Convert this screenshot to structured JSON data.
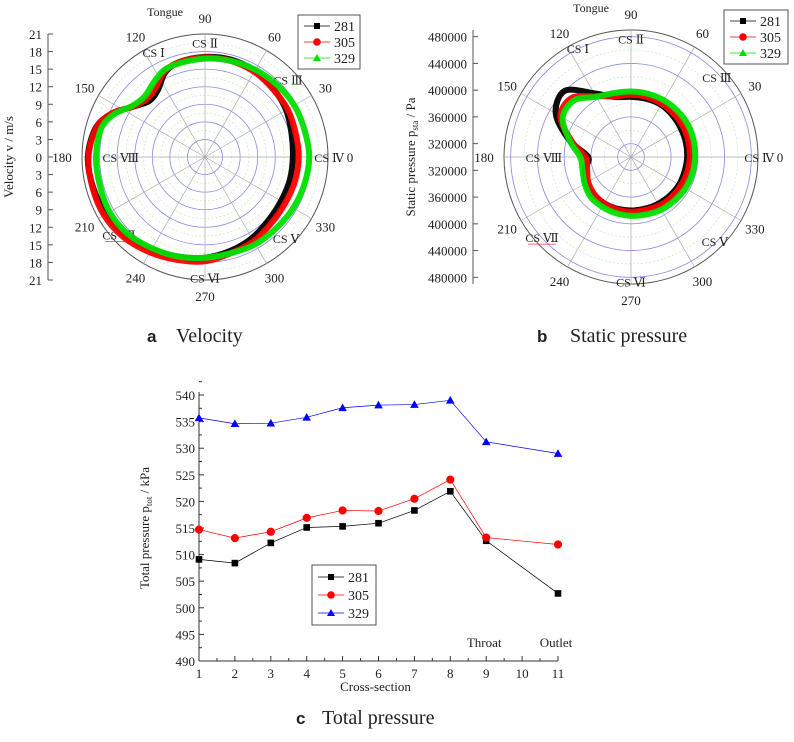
{
  "captions": [
    {
      "letter": "a",
      "text": "Velocity"
    },
    {
      "letter": "b",
      "text": "Static pressure"
    },
    {
      "letter": "c",
      "text": "Total pressure"
    }
  ],
  "chart_data": [
    {
      "type": "polar-line",
      "ylabel": "Velocity v / m/s",
      "rlim": [
        0,
        21
      ],
      "rticks": [
        0,
        3,
        6,
        9,
        12,
        15,
        18,
        21
      ],
      "angle_ticks": [
        0,
        30,
        60,
        90,
        120,
        150,
        180,
        210,
        240,
        270,
        300,
        330
      ],
      "annotations": [
        "Tongue",
        "CS Ⅰ",
        "CS Ⅱ",
        "CS Ⅲ",
        "CS Ⅳ",
        "CS Ⅴ",
        "CS Ⅵ",
        "CS Ⅶ",
        "CS Ⅷ"
      ],
      "legend": "top-right",
      "grid": true,
      "theta": [
        0,
        15,
        30,
        45,
        60,
        75,
        90,
        105,
        115,
        125,
        135,
        145,
        155,
        165,
        180,
        195,
        210,
        225,
        240,
        255,
        270,
        285,
        300,
        315,
        330,
        345
      ],
      "series": [
        {
          "name": "281",
          "color": "#000000",
          "marker": "square",
          "values": [
            15.0,
            15.3,
            16.0,
            16.5,
            17.0,
            17.2,
            17.1,
            16.8,
            16.0,
            14.0,
            13.5,
            15.0,
            17.5,
            19.3,
            20.0,
            19.8,
            19.5,
            19.0,
            18.2,
            17.6,
            17.2,
            16.6,
            16.0,
            15.3,
            15.0,
            15.0
          ]
        },
        {
          "name": "305",
          "color": "#ff0000",
          "marker": "circle",
          "values": [
            16.0,
            16.0,
            16.3,
            16.4,
            16.8,
            17.0,
            17.0,
            16.8,
            16.2,
            14.6,
            14.0,
            15.0,
            17.6,
            19.2,
            19.9,
            19.9,
            19.9,
            19.5,
            18.8,
            18.2,
            17.8,
            17.0,
            16.6,
            16.0,
            15.8,
            15.9
          ]
        },
        {
          "name": "329",
          "color": "#00e000",
          "marker": "triangle",
          "values": [
            17.8,
            17.6,
            17.6,
            17.4,
            17.2,
            17.0,
            16.8,
            16.6,
            16.4,
            15.4,
            14.6,
            15.2,
            17.2,
            18.4,
            18.6,
            18.6,
            18.8,
            18.6,
            18.0,
            17.6,
            17.2,
            17.0,
            17.2,
            17.2,
            17.4,
            17.6
          ]
        }
      ]
    },
    {
      "type": "polar-line",
      "ylabel": "Static pressure p",
      "ylabel_sub": "sta",
      "ylabel_unit": " / Pa",
      "rlim": [
        300000,
        490000
      ],
      "rticks": [
        320000,
        360000,
        400000,
        440000,
        480000
      ],
      "angle_ticks": [
        0,
        30,
        60,
        90,
        120,
        150,
        180,
        210,
        240,
        270,
        300,
        330
      ],
      "annotations": [
        "Tongue",
        "CS Ⅰ",
        "CS Ⅱ",
        "CS Ⅲ",
        "CS Ⅳ",
        "CS Ⅴ",
        "CS Ⅵ",
        "CS Ⅶ",
        "CS Ⅷ"
      ],
      "legend": "top-right",
      "grid": true,
      "theta": [
        0,
        15,
        30,
        45,
        60,
        75,
        90,
        105,
        120,
        135,
        150,
        165,
        180,
        195,
        210,
        225,
        240,
        255,
        270,
        285,
        300,
        315,
        330,
        345
      ],
      "series": [
        {
          "name": "281",
          "color": "#000000",
          "marker": "square",
          "values": [
            384000,
            385000,
            386000,
            388000,
            390000,
            390000,
            390000,
            393000,
            410000,
            440000,
            430000,
            395000,
            364000,
            372000,
            378000,
            380000,
            380000,
            380000,
            380000,
            380000,
            381000,
            382000,
            383000,
            383000
          ]
        },
        {
          "name": "305",
          "color": "#ff0000",
          "marker": "circle",
          "values": [
            388000,
            389000,
            390000,
            391000,
            392000,
            393000,
            393000,
            394000,
            405000,
            425000,
            422000,
            392000,
            368000,
            368000,
            374000,
            378000,
            380000,
            381000,
            382000,
            382000,
            384000,
            385000,
            386000,
            387000
          ]
        },
        {
          "name": "329",
          "color": "#00e000",
          "marker": "triangle",
          "values": [
            396000,
            397000,
            398000,
            398000,
            398000,
            398000,
            398000,
            399000,
            404000,
            420000,
            418000,
            395000,
            376000,
            375000,
            380000,
            385000,
            386000,
            387000,
            388000,
            389000,
            391000,
            392000,
            394000,
            395000
          ]
        }
      ]
    },
    {
      "type": "line",
      "xlabel": "Cross-section",
      "ylabel": "Total pressure p",
      "ylabel_sub": "tot",
      "ylabel_unit": " / kPa",
      "xlim": [
        1,
        11
      ],
      "ylim": [
        490,
        540
      ],
      "xticks": [
        1,
        2,
        3,
        4,
        5,
        6,
        7,
        8,
        9,
        10,
        11
      ],
      "yticks": [
        490,
        495,
        500,
        505,
        510,
        515,
        520,
        525,
        530,
        535,
        540
      ],
      "annotations": [
        {
          "text": "Throat",
          "x": 9
        },
        {
          "text": "Outlet",
          "x": 11
        }
      ],
      "legend": "center-left",
      "grid": false,
      "x": [
        1,
        2,
        3,
        4,
        5,
        6,
        7,
        8,
        9,
        11
      ],
      "series": [
        {
          "name": "281",
          "color": "#000000",
          "marker": "square",
          "values": [
            509.1,
            508.4,
            512.2,
            515.1,
            515.3,
            515.9,
            518.3,
            521.9,
            512.6,
            502.7
          ]
        },
        {
          "name": "305",
          "color": "#ff0000",
          "marker": "circle",
          "values": [
            514.7,
            513.1,
            514.3,
            516.9,
            518.3,
            518.2,
            520.5,
            524.1,
            513.2,
            511.9
          ]
        },
        {
          "name": "329",
          "color": "#0000ff",
          "marker": "triangle",
          "values": [
            535.7,
            534.6,
            534.7,
            535.8,
            537.6,
            538.1,
            538.2,
            539.0,
            531.2,
            529.0
          ]
        }
      ]
    }
  ]
}
